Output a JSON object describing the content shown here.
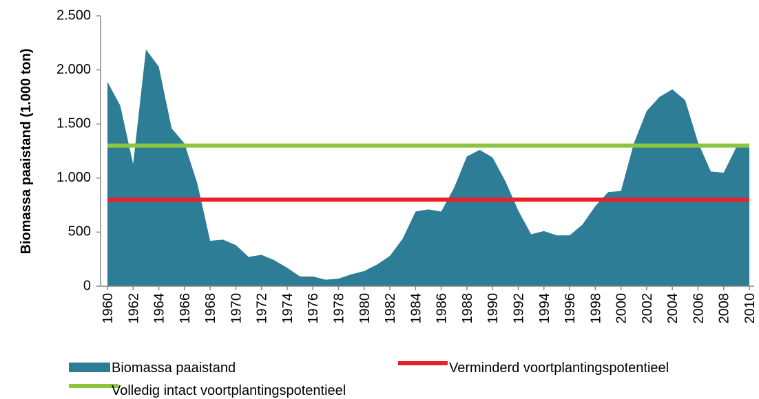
{
  "chart_data": {
    "type": "area",
    "ylabel": "Biomassa paaistand (1.000 ton)",
    "x": [
      1960,
      1961,
      1962,
      1963,
      1964,
      1965,
      1966,
      1967,
      1968,
      1969,
      1970,
      1971,
      1972,
      1973,
      1974,
      1975,
      1976,
      1977,
      1978,
      1979,
      1980,
      1981,
      1982,
      1983,
      1984,
      1985,
      1986,
      1987,
      1988,
      1989,
      1990,
      1991,
      1992,
      1993,
      1994,
      1995,
      1996,
      1997,
      1998,
      1999,
      2000,
      2001,
      2002,
      2003,
      2004,
      2005,
      2006,
      2007,
      2008,
      2009,
      2010
    ],
    "series": [
      {
        "name": "Biomassa paaistand",
        "color": "#2e7d96",
        "values": [
          1890,
          1670,
          1130,
          2190,
          2030,
          1460,
          1320,
          950,
          420,
          430,
          380,
          270,
          290,
          240,
          170,
          90,
          90,
          60,
          70,
          110,
          140,
          200,
          280,
          440,
          690,
          710,
          690,
          910,
          1200,
          1260,
          1190,
          970,
          700,
          480,
          510,
          470,
          470,
          570,
          740,
          870,
          880,
          1320,
          1620,
          1750,
          1820,
          1720,
          1330,
          1060,
          1050,
          1290,
          1300
        ]
      }
    ],
    "reference_lines": [
      {
        "name": "Verminderd voortplantingspotentieel",
        "color": "#e8222a",
        "value": 800
      },
      {
        "name": "Volledig intact voortplantingspotentieel",
        "color": "#8cc540",
        "value": 1300
      }
    ],
    "xlim": [
      1960,
      2010
    ],
    "xticks": [
      1960,
      1962,
      1964,
      1966,
      1968,
      1970,
      1972,
      1974,
      1976,
      1978,
      1980,
      1982,
      1984,
      1986,
      1988,
      1990,
      1992,
      1994,
      1996,
      1998,
      2000,
      2002,
      2004,
      2006,
      2008,
      2010
    ],
    "ylim": [
      0,
      2500
    ],
    "yticks": [
      0,
      500,
      {
        "value": 1000,
        "label": "1.000"
      },
      {
        "value": 1500,
        "label": "1.500"
      },
      {
        "value": 2000,
        "label": "2.000"
      },
      {
        "value": 2500,
        "label": "2.500"
      }
    ],
    "grid": false
  }
}
